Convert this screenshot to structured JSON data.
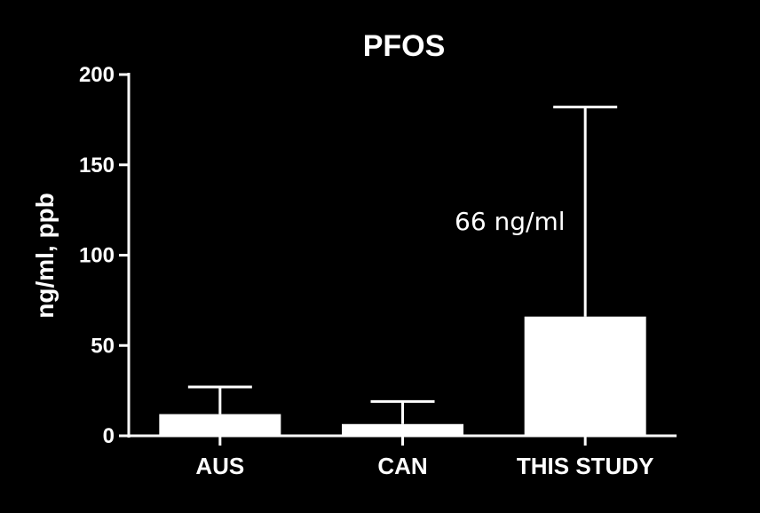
{
  "chart_data": {
    "type": "bar",
    "title": "PFOS",
    "xlabel": "",
    "ylabel": "ng/ml, ppb",
    "ylim": [
      0,
      200
    ],
    "yticks": [
      0,
      50,
      100,
      150,
      200
    ],
    "categories": [
      "AUS",
      "CAN",
      "THIS STUDY"
    ],
    "values": [
      12,
      6.5,
      66
    ],
    "error_upper": [
      27,
      19,
      182
    ],
    "annotation": "66 ng/ml",
    "grid": false,
    "legend": "none",
    "colors": {
      "background": "#000000",
      "foreground": "#ffffff",
      "bar": "#ffffff"
    }
  }
}
